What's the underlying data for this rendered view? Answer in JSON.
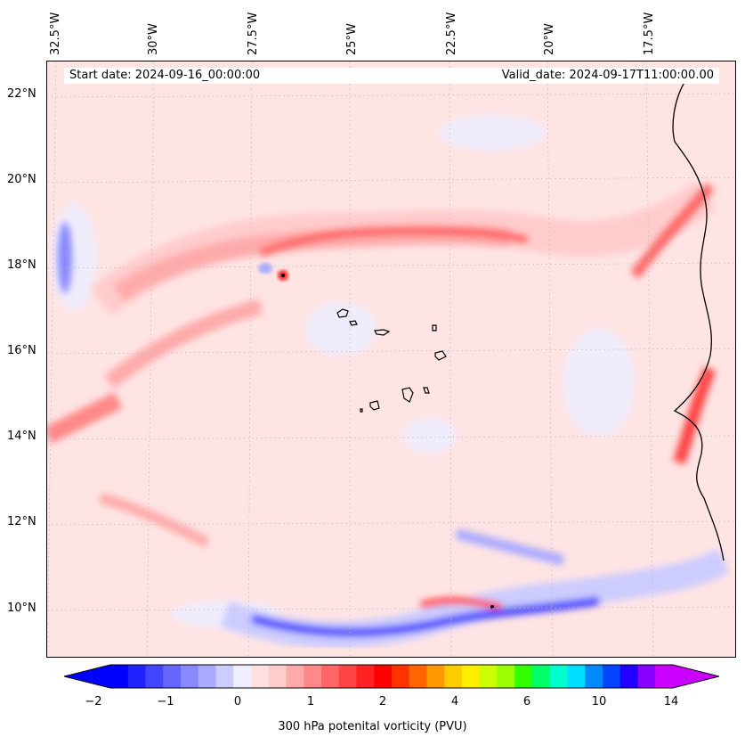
{
  "map": {
    "start_label": "Start date: 2024-09-16_00:00:00",
    "valid_label": "Valid_date: 2024-09-17T11:00:00.00",
    "lon_labels": [
      "32.5°W",
      "30°W",
      "27.5°W",
      "25°W",
      "22.5°W",
      "20°W",
      "17.5°W"
    ],
    "lat_labels": [
      "22°N",
      "20°N",
      "18°N",
      "16°N",
      "14°N",
      "12°N",
      "10°N"
    ]
  },
  "colorbar": {
    "label": "300 hPa potenital vorticity (PVU)",
    "ticks": [
      "−2",
      "−1",
      "0",
      "1",
      "2",
      "4",
      "6",
      "10",
      "14"
    ],
    "colors": [
      "#0000ff",
      "#2222ff",
      "#4444ff",
      "#6666ff",
      "#8888ff",
      "#aaaaff",
      "#ccccff",
      "#eeeeff",
      "#ffe0e0",
      "#ffcccc",
      "#ffaaaa",
      "#ff8888",
      "#ff6666",
      "#ff4444",
      "#ff2222",
      "#ff0000",
      "#ff3300",
      "#ff6600",
      "#ff9900",
      "#ffcc00",
      "#ffee00",
      "#ccff00",
      "#99ff00",
      "#33ff00",
      "#00ff66",
      "#00ffcc",
      "#00ddff",
      "#0088ff",
      "#0044ff",
      "#2200ff",
      "#8800ff",
      "#cc00ff"
    ]
  }
}
